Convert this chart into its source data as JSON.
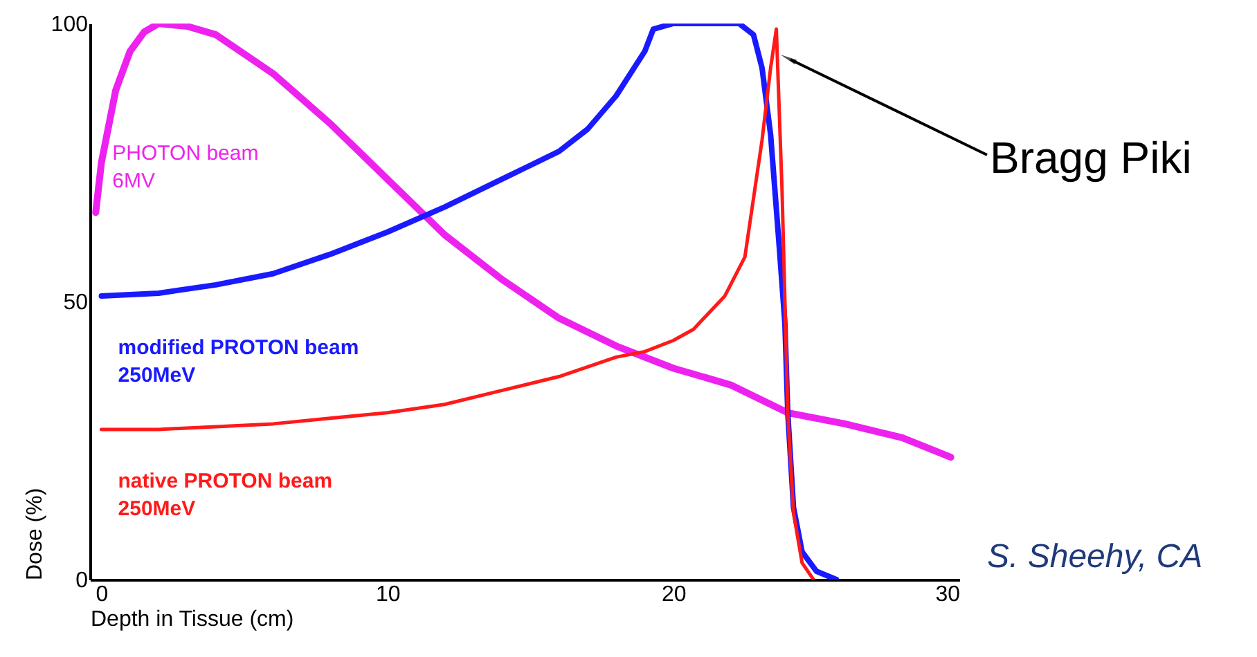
{
  "chart_data": {
    "type": "line",
    "xlabel": "Depth in Tissue (cm)",
    "ylabel": "Dose (%)",
    "xlim": [
      -0.4,
      30
    ],
    "ylim": [
      0,
      100
    ],
    "xticks": [
      0,
      10,
      20,
      30
    ],
    "yticks": [
      0,
      50,
      100
    ],
    "grid": false,
    "marker": "none",
    "line_style": "solid",
    "series": [
      {
        "name": "PHOTON beam\n6MV",
        "color": "#ee22ee",
        "x": [
          -0.2,
          0,
          0.5,
          1,
          1.5,
          2,
          3,
          4,
          6,
          8,
          10,
          12,
          14,
          16,
          18,
          20,
          22,
          24,
          26,
          28,
          29.7
        ],
        "values": [
          66,
          75,
          88,
          95,
          98.5,
          100,
          99.5,
          98,
          91,
          82,
          72,
          62,
          54,
          47,
          42,
          38,
          35,
          30,
          28,
          25.5,
          22
        ]
      },
      {
        "name": "modified PROTON beam\n250MeV",
        "color": "#1a1aff",
        "x": [
          0,
          2,
          4,
          6,
          8,
          10,
          12,
          14,
          16,
          17,
          18,
          19,
          19.3,
          20,
          22.3,
          22.8,
          23.1,
          23.4,
          23.7,
          23.9,
          24.0,
          24.2,
          24.5,
          25,
          25.7
        ],
        "values": [
          51,
          51.5,
          53,
          55,
          58.5,
          62.5,
          67,
          72,
          77,
          81,
          87,
          95,
          99,
          100,
          100,
          98,
          92,
          80,
          60,
          46,
          30,
          13,
          5,
          1.5,
          0
        ]
      },
      {
        "name": "native PROTON beam\n250MeV",
        "color": "#ff1a1a",
        "x": [
          0,
          2,
          4,
          6,
          8,
          10,
          12,
          14,
          16,
          18,
          19,
          20,
          20.7,
          21.8,
          22.5,
          23.1,
          23.4,
          23.6,
          23.8,
          24.0,
          24.2,
          24.5,
          24.9
        ],
        "values": [
          27,
          27,
          27.5,
          28,
          29,
          30,
          31.5,
          34,
          36.5,
          40,
          41,
          43,
          45,
          51,
          58,
          79,
          92,
          99,
          70,
          30,
          12,
          3,
          0
        ]
      }
    ],
    "annotations": [
      {
        "text": "Bragg Piki",
        "x": 24.1,
        "y": 93.5
      },
      "S. Sheehy, CA"
    ]
  }
}
